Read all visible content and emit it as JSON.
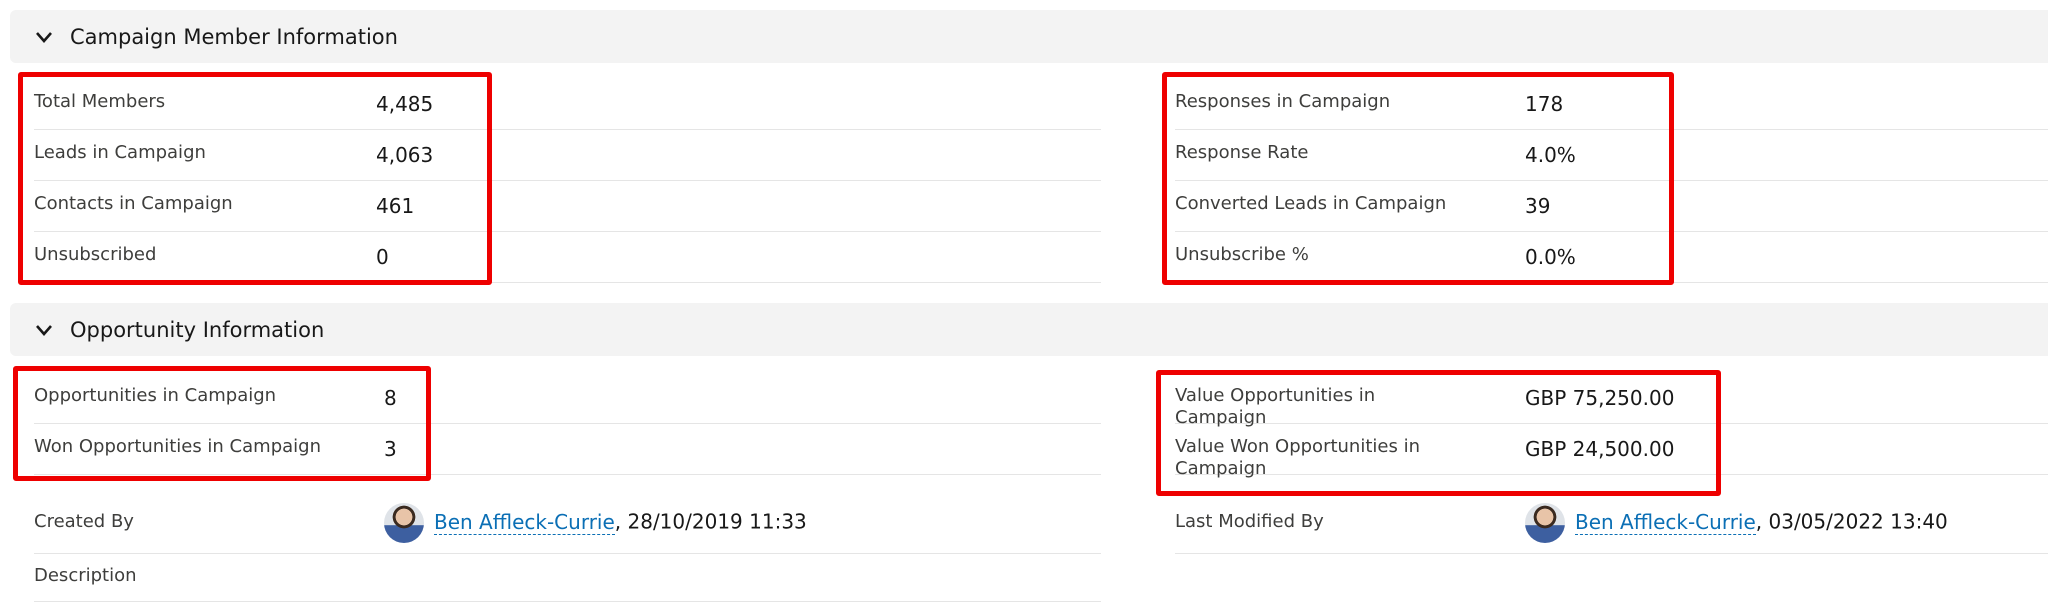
{
  "sections": [
    {
      "title": "Campaign Member Information"
    },
    {
      "title": "Opportunity Information"
    }
  ],
  "campaign_member": {
    "left": [
      {
        "label": "Total Members",
        "value": "4,485"
      },
      {
        "label": "Leads in Campaign",
        "value": "4,063"
      },
      {
        "label": "Contacts in Campaign",
        "value": "461"
      },
      {
        "label": "Unsubscribed",
        "value": "0"
      }
    ],
    "right": [
      {
        "label": "Responses in Campaign",
        "value": "178"
      },
      {
        "label": "Response Rate",
        "value": "4.0%"
      },
      {
        "label": "Converted Leads in Campaign",
        "value": "39"
      },
      {
        "label": "Unsubscribe %",
        "value": "0.0%"
      }
    ]
  },
  "opportunity": {
    "left": [
      {
        "label": "Opportunities in Campaign",
        "value": "8"
      },
      {
        "label": "Won Opportunities in Campaign",
        "value": "3"
      }
    ],
    "right": [
      {
        "label": "Value Opportunities in Campaign",
        "value": "GBP 75,250.00"
      },
      {
        "label": "Value Won Opportunities in Campaign",
        "value": "GBP 24,500.00"
      }
    ]
  },
  "created_by": {
    "label": "Created By",
    "user": "Ben Affleck-Currie",
    "date": ", 28/10/2019 11:33"
  },
  "modified_by": {
    "label": "Last Modified By",
    "user": "Ben Affleck-Currie",
    "date": ", 03/05/2022 13:40"
  },
  "description": {
    "label": "Description"
  },
  "highlight_color": "#ee0000"
}
